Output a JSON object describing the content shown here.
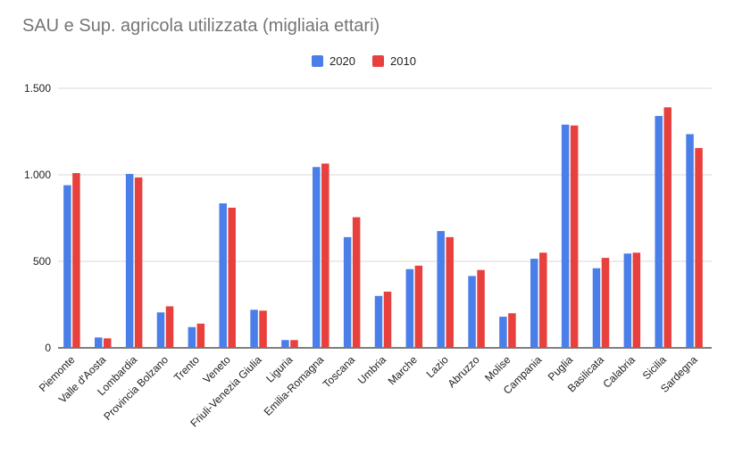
{
  "chart_data": {
    "type": "bar",
    "title": "SAU e Sup. agricola utilizzata (migliaia ettari)",
    "xlabel": "",
    "ylabel": "",
    "ylim": [
      0,
      1500
    ],
    "yticks": [
      0,
      500,
      1000,
      1500
    ],
    "ytick_labels": [
      "0",
      "500",
      "1.000",
      "1.500"
    ],
    "grid": true,
    "legend_position": "top-center",
    "categories": [
      "Piemonte",
      "Valle d'Aosta",
      "Lombardia",
      "Provincia Bolzano",
      "Trento",
      "Veneto",
      "Friuli-Venezia Giulia",
      "Liguria",
      "Emilia-Romagna",
      "Toscana",
      "Umbria",
      "Marche",
      "Lazio",
      "Abruzzo",
      "Molise",
      "Campania",
      "Puglia",
      "Basilicata",
      "Calabria",
      "Sicilia",
      "Sardegna"
    ],
    "series": [
      {
        "name": "2020",
        "color": "#4a7ee8",
        "values": [
          940,
          60,
          1005,
          205,
          120,
          835,
          220,
          45,
          1045,
          640,
          300,
          455,
          675,
          415,
          180,
          515,
          1290,
          460,
          545,
          1340,
          1235
        ]
      },
      {
        "name": "2010",
        "color": "#e8403d",
        "values": [
          1010,
          55,
          985,
          240,
          140,
          810,
          215,
          45,
          1065,
          755,
          325,
          475,
          640,
          450,
          200,
          550,
          1285,
          520,
          550,
          1390,
          1155
        ]
      }
    ]
  }
}
